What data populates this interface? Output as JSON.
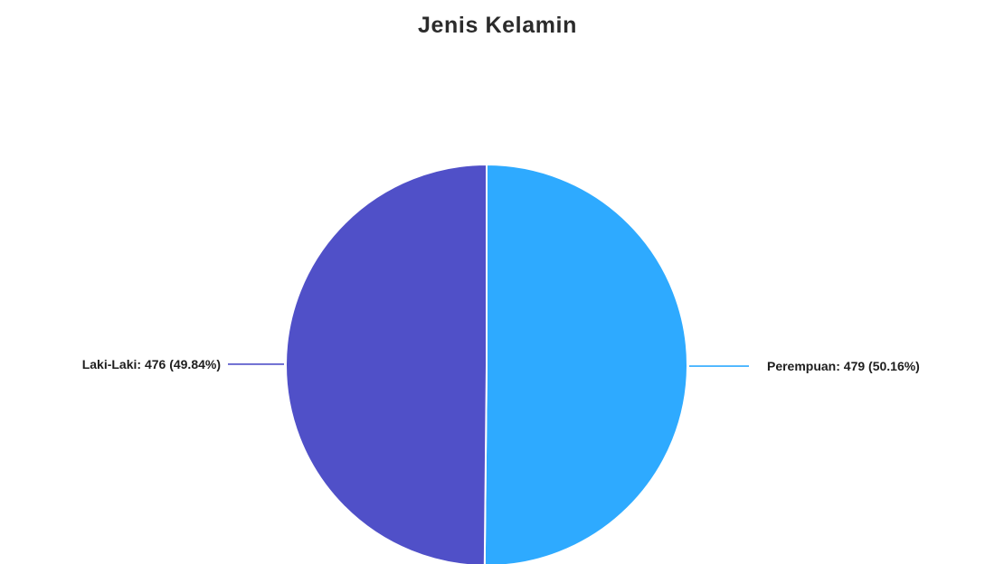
{
  "chart_data": {
    "type": "pie",
    "title": "Jenis Kelamin",
    "slices": [
      {
        "name": "Perempuan",
        "value": 479,
        "percent": 50.16,
        "label": "Perempuan: 479 (50.16%)",
        "color": "#2eaaff"
      },
      {
        "name": "Laki-Laki",
        "value": 476,
        "percent": 49.84,
        "label": "Laki-Laki: 476 (49.84%)",
        "color": "#5050c8"
      }
    ],
    "legend": "none",
    "labels": "outside-with-leader-lines"
  },
  "colors": {
    "background": "#ffffff",
    "slice_border": "#ffffff",
    "title": "#2b2b2b",
    "label_text": "#1e1e1e"
  }
}
